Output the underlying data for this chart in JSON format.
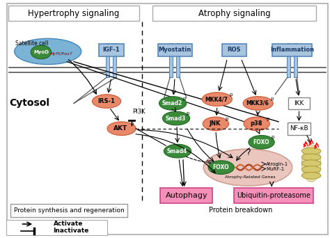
{
  "title_hypertrophy": "Hypertrophy signaling",
  "title_atrophy": "Atrophy signaling",
  "cytosol_label": "Cytosol",
  "satellite_label": "Satellite cell",
  "protein_synth_label": "Protein synthesis and regeneration",
  "protein_breakdown_label": "Protein breakdown",
  "autophagy_label": "Autophagy",
  "ubiquitin_label": "Ubiquitin-proteasome",
  "activate_label": "Activate",
  "inactivate_label": "Inactivate",
  "receptor_color": "#a8c4de",
  "pink_node_color": "#e8896a",
  "green_node_color": "#3a8a3a",
  "blue_ellipse_color": "#7ab3d6",
  "pink_bg_color": "#f06090",
  "nucleus_color": "#e8b8b0",
  "yellow_node_color": "#d4c96e",
  "box_border": "#888888",
  "igf1_box_color": "#a8c4de",
  "myostatin_box_color": "#a8c4de",
  "ros_box_color": "#a8c4de",
  "inflammation_box_color": "#a8c4de"
}
